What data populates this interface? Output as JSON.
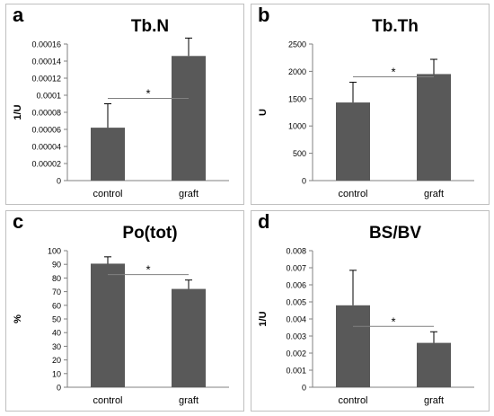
{
  "panels": [
    {
      "letter": "a",
      "chart_data": {
        "type": "bar",
        "title": "Tb.N",
        "ylabel": "1/U",
        "xlabel": "",
        "categories": [
          "control",
          "graft"
        ],
        "values": [
          6.2e-05,
          0.000146
        ],
        "errors": [
          2.8e-05,
          2.1e-05
        ],
        "ylim": [
          0,
          0.00016
        ],
        "yticks": [
          "0",
          "0.00002",
          "0.00004",
          "0.00006",
          "0.00008",
          "0.0001",
          "0.00012",
          "0.00014",
          "0.00016"
        ],
        "significance": "*",
        "bar_color": "#595959",
        "grid": false,
        "legend": false
      }
    },
    {
      "letter": "b",
      "chart_data": {
        "type": "bar",
        "title": "Tb.Th",
        "ylabel": "U",
        "xlabel": "",
        "categories": [
          "control",
          "graft"
        ],
        "values": [
          1430,
          1950
        ],
        "errors": [
          370,
          270
        ],
        "ylim": [
          0,
          2500
        ],
        "yticks": [
          "0",
          "500",
          "1000",
          "1500",
          "2000",
          "2500"
        ],
        "significance": "*",
        "bar_color": "#595959",
        "grid": false,
        "legend": false
      }
    },
    {
      "letter": "c",
      "chart_data": {
        "type": "bar",
        "title": "Po(tot)",
        "ylabel": "%",
        "xlabel": "",
        "categories": [
          "control",
          "graft"
        ],
        "values": [
          90.5,
          72
        ],
        "errors": [
          5,
          6.5
        ],
        "ylim": [
          0,
          100
        ],
        "yticks": [
          "0",
          "10",
          "20",
          "30",
          "40",
          "50",
          "60",
          "70",
          "80",
          "90",
          "100"
        ],
        "significance": "*",
        "bar_color": "#595959",
        "grid": false,
        "legend": false
      }
    },
    {
      "letter": "d",
      "chart_data": {
        "type": "bar",
        "title": "BS/BV",
        "ylabel": "1/U",
        "xlabel": "",
        "categories": [
          "control",
          "graft"
        ],
        "values": [
          0.0048,
          0.0026
        ],
        "errors": [
          0.00205,
          0.00065
        ],
        "ylim": [
          0,
          0.008
        ],
        "yticks": [
          "0",
          "0.001",
          "0.002",
          "0.003",
          "0.004",
          "0.005",
          "0.006",
          "0.007",
          "0.008"
        ],
        "significance": "*",
        "bar_color": "#595959",
        "grid": false,
        "legend": false
      }
    }
  ]
}
